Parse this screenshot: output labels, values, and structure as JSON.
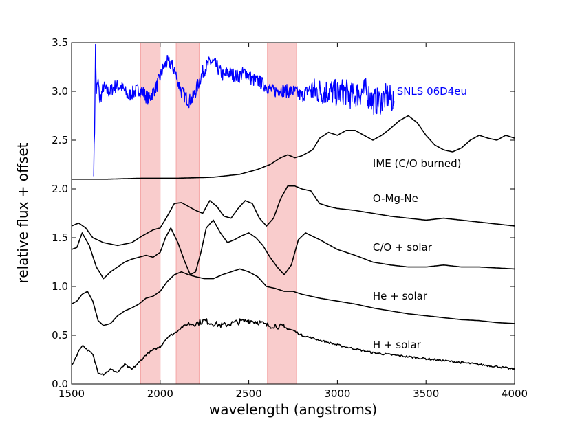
{
  "chart_data": {
    "type": "line",
    "title": "",
    "xlabel": "wavelength (angstroms)",
    "ylabel": "relative flux + offset",
    "xlim": [
      1500,
      4000
    ],
    "ylim": [
      0.0,
      3.5
    ],
    "grid": false,
    "x_ticks": [
      1500,
      2000,
      2500,
      3000,
      3500,
      4000
    ],
    "x_tick_labels": [
      "1500",
      "2000",
      "2500",
      "3000",
      "3500",
      "4000"
    ],
    "y_ticks": [
      0.0,
      0.5,
      1.0,
      1.5,
      2.0,
      2.5,
      3.0,
      3.5
    ],
    "y_tick_labels": [
      "0.0",
      "0.5",
      "1.0",
      "1.5",
      "2.0",
      "2.5",
      "3.0",
      "3.5"
    ],
    "shaded_bands": [
      {
        "x0": 1890,
        "x1": 2000
      },
      {
        "x0": 2090,
        "x1": 2220
      },
      {
        "x0": 2605,
        "x1": 2770
      }
    ],
    "band_color": "#f08080",
    "series": [
      {
        "name": "SNLS 06D4eu",
        "color": "#0000ff",
        "noisy": true,
        "label_pos": [
          3335,
          3.0
        ],
        "x": [
          1625,
          1630,
          1635,
          1640,
          1650,
          1660,
          1680,
          1700,
          1720,
          1740,
          1760,
          1780,
          1800,
          1820,
          1840,
          1860,
          1880,
          1900,
          1920,
          1940,
          1960,
          1980,
          2000,
          2020,
          2040,
          2060,
          2080,
          2100,
          2120,
          2140,
          2160,
          2180,
          2200,
          2220,
          2240,
          2260,
          2280,
          2300,
          2320,
          2340,
          2360,
          2380,
          2400,
          2440,
          2480,
          2520,
          2560,
          2600,
          2640,
          2680,
          2720,
          2760,
          2800,
          2840,
          2880,
          2920,
          2960,
          3000,
          3040,
          3080,
          3120,
          3160,
          3200,
          3240,
          3280,
          3320
        ],
        "y": [
          2.2,
          2.6,
          3.45,
          3.0,
          3.1,
          2.9,
          3.05,
          3.0,
          3.0,
          3.05,
          3.05,
          3.05,
          3.0,
          2.95,
          2.98,
          3.0,
          3.02,
          3.0,
          2.95,
          2.92,
          3.0,
          3.05,
          3.15,
          3.25,
          3.3,
          3.28,
          3.22,
          3.1,
          3.0,
          2.95,
          2.9,
          2.92,
          3.0,
          3.1,
          3.2,
          3.25,
          3.3,
          3.3,
          3.25,
          3.2,
          3.15,
          3.2,
          3.18,
          3.15,
          3.2,
          3.12,
          3.1,
          3.05,
          3.0,
          3.02,
          3.0,
          3.0,
          2.95,
          3.02,
          3.0,
          3.0,
          3.0,
          2.98,
          3.0,
          2.95,
          2.98,
          3.0,
          2.9,
          2.9,
          2.95,
          2.9
        ]
      },
      {
        "name": "IME (C/O burned)",
        "color": "#000000",
        "label_pos": [
          3200,
          2.26
        ],
        "x": [
          1500,
          1700,
          1900,
          2100,
          2300,
          2450,
          2550,
          2620,
          2680,
          2720,
          2760,
          2800,
          2860,
          2900,
          2950,
          3000,
          3050,
          3100,
          3150,
          3200,
          3250,
          3300,
          3350,
          3400,
          3450,
          3500,
          3550,
          3600,
          3650,
          3700,
          3750,
          3800,
          3850,
          3900,
          3950,
          4000
        ],
        "y": [
          2.1,
          2.1,
          2.11,
          2.11,
          2.12,
          2.15,
          2.2,
          2.25,
          2.32,
          2.35,
          2.32,
          2.34,
          2.4,
          2.52,
          2.58,
          2.55,
          2.6,
          2.6,
          2.55,
          2.5,
          2.55,
          2.62,
          2.7,
          2.75,
          2.68,
          2.55,
          2.45,
          2.4,
          2.38,
          2.42,
          2.5,
          2.55,
          2.52,
          2.5,
          2.55,
          2.52
        ]
      },
      {
        "name": "O-Mg-Ne",
        "color": "#000000",
        "label_pos": [
          3200,
          1.9
        ],
        "x": [
          1500,
          1540,
          1580,
          1620,
          1680,
          1760,
          1840,
          1900,
          1960,
          2000,
          2040,
          2080,
          2120,
          2160,
          2200,
          2240,
          2280,
          2320,
          2360,
          2400,
          2440,
          2480,
          2520,
          2560,
          2600,
          2640,
          2680,
          2720,
          2760,
          2800,
          2850,
          2900,
          2950,
          3000,
          3100,
          3200,
          3300,
          3400,
          3500,
          3600,
          3700,
          3800,
          3900,
          4000
        ],
        "y": [
          1.62,
          1.65,
          1.6,
          1.5,
          1.45,
          1.42,
          1.45,
          1.52,
          1.58,
          1.6,
          1.72,
          1.85,
          1.86,
          1.82,
          1.78,
          1.75,
          1.88,
          1.82,
          1.72,
          1.7,
          1.8,
          1.88,
          1.85,
          1.7,
          1.62,
          1.7,
          1.9,
          2.03,
          2.03,
          2.0,
          1.98,
          1.85,
          1.82,
          1.8,
          1.78,
          1.75,
          1.72,
          1.7,
          1.68,
          1.7,
          1.68,
          1.66,
          1.64,
          1.62
        ]
      },
      {
        "name": "C/O + solar",
        "color": "#000000",
        "label_pos": [
          3200,
          1.4
        ],
        "x": [
          1500,
          1530,
          1560,
          1600,
          1640,
          1680,
          1720,
          1760,
          1800,
          1840,
          1880,
          1920,
          1960,
          2000,
          2030,
          2060,
          2100,
          2140,
          2170,
          2200,
          2230,
          2260,
          2300,
          2340,
          2380,
          2420,
          2460,
          2500,
          2540,
          2580,
          2620,
          2660,
          2700,
          2740,
          2780,
          2820,
          2900,
          3000,
          3100,
          3200,
          3300,
          3400,
          3500,
          3600,
          3700,
          3800,
          3900,
          4000
        ],
        "y": [
          1.38,
          1.4,
          1.55,
          1.42,
          1.2,
          1.08,
          1.15,
          1.2,
          1.25,
          1.28,
          1.3,
          1.32,
          1.3,
          1.35,
          1.5,
          1.6,
          1.45,
          1.25,
          1.12,
          1.15,
          1.35,
          1.6,
          1.68,
          1.55,
          1.45,
          1.48,
          1.52,
          1.55,
          1.5,
          1.42,
          1.3,
          1.2,
          1.12,
          1.22,
          1.48,
          1.55,
          1.48,
          1.38,
          1.32,
          1.25,
          1.22,
          1.2,
          1.2,
          1.22,
          1.2,
          1.2,
          1.19,
          1.18
        ]
      },
      {
        "name": "He + solar",
        "color": "#000000",
        "label_pos": [
          3200,
          0.9
        ],
        "x": [
          1500,
          1530,
          1560,
          1590,
          1620,
          1650,
          1680,
          1720,
          1760,
          1800,
          1840,
          1880,
          1920,
          1960,
          2000,
          2040,
          2080,
          2120,
          2160,
          2200,
          2250,
          2300,
          2350,
          2400,
          2450,
          2500,
          2550,
          2600,
          2650,
          2700,
          2750,
          2800,
          2900,
          3000,
          3100,
          3200,
          3300,
          3400,
          3500,
          3600,
          3700,
          3800,
          3900,
          4000
        ],
        "y": [
          0.82,
          0.85,
          0.92,
          0.95,
          0.85,
          0.65,
          0.6,
          0.62,
          0.7,
          0.75,
          0.78,
          0.82,
          0.88,
          0.9,
          0.95,
          1.05,
          1.12,
          1.15,
          1.12,
          1.1,
          1.08,
          1.08,
          1.12,
          1.15,
          1.18,
          1.15,
          1.1,
          1.0,
          0.98,
          0.95,
          0.95,
          0.92,
          0.88,
          0.85,
          0.82,
          0.78,
          0.75,
          0.72,
          0.7,
          0.68,
          0.66,
          0.65,
          0.63,
          0.62
        ]
      },
      {
        "name": "H + solar",
        "color": "#000000",
        "noisy_light": true,
        "label_pos": [
          3200,
          0.4
        ],
        "x": [
          1500,
          1530,
          1560,
          1590,
          1620,
          1650,
          1680,
          1720,
          1760,
          1800,
          1840,
          1880,
          1920,
          1960,
          2000,
          2040,
          2080,
          2120,
          2160,
          2200,
          2250,
          2300,
          2350,
          2400,
          2450,
          2500,
          2550,
          2600,
          2650,
          2700,
          2750,
          2800,
          2900,
          3000,
          3100,
          3200,
          3300,
          3400,
          3500,
          3600,
          3700,
          3800,
          3900,
          4000
        ],
        "y": [
          0.18,
          0.3,
          0.4,
          0.35,
          0.3,
          0.12,
          0.1,
          0.15,
          0.12,
          0.2,
          0.15,
          0.22,
          0.3,
          0.35,
          0.38,
          0.48,
          0.52,
          0.58,
          0.62,
          0.62,
          0.65,
          0.62,
          0.6,
          0.62,
          0.64,
          0.65,
          0.64,
          0.6,
          0.6,
          0.58,
          0.55,
          0.5,
          0.45,
          0.4,
          0.36,
          0.32,
          0.3,
          0.28,
          0.26,
          0.24,
          0.22,
          0.2,
          0.18,
          0.15
        ]
      }
    ]
  }
}
